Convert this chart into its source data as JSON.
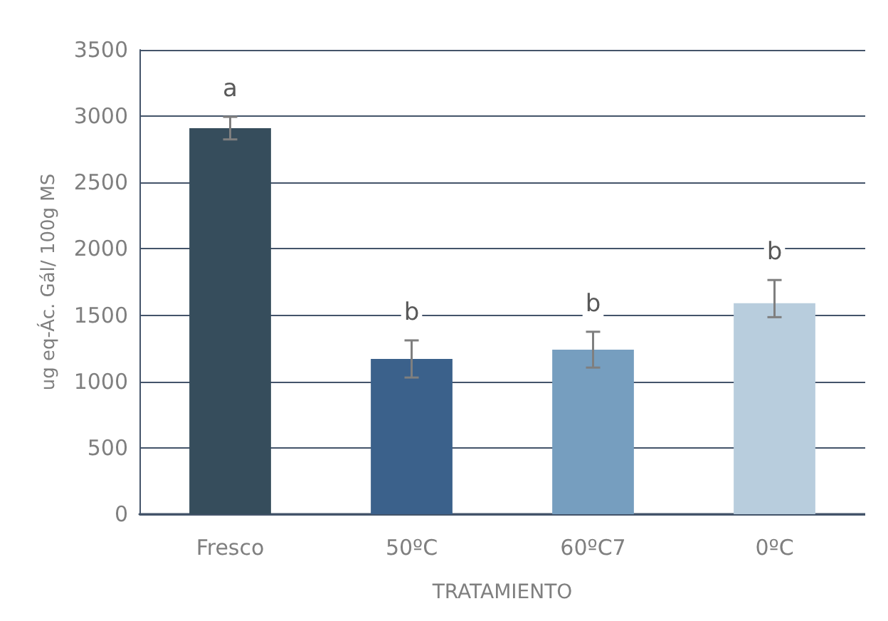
{
  "chart_data": {
    "type": "bar",
    "xlabel": "TRATAMIENTO",
    "ylabel": "ug eq-Ác. Gál/ 100g MS",
    "categories": [
      "Fresco",
      "50ºC",
      "60ºC7",
      "0ºC"
    ],
    "values": [
      2910,
      1170,
      1240,
      1590
    ],
    "colors": [
      "#364d5c",
      "#3b618b",
      "#769ebf",
      "#b8cddd"
    ],
    "errors": [
      85,
      140,
      135,
      [
        1485,
        1765
      ]
    ],
    "annotations": [
      "a",
      "b",
      "b",
      "b"
    ],
    "ylim": [
      0,
      3500
    ],
    "yticks": [
      0,
      500,
      1000,
      1500,
      2000,
      2500,
      3000,
      3500
    ],
    "grid": "y"
  }
}
